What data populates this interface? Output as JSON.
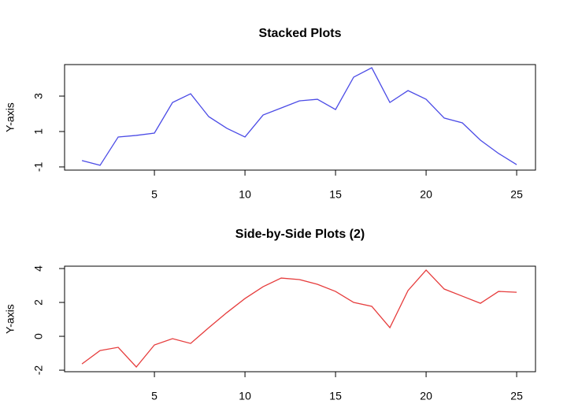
{
  "chart_data": [
    {
      "type": "line",
      "title": "Stacked Plots",
      "ylabel": "Y-axis",
      "x": [
        1,
        2,
        3,
        4,
        5,
        6,
        7,
        8,
        9,
        10,
        11,
        12,
        13,
        14,
        15,
        16,
        17,
        18,
        19,
        20,
        21,
        22,
        23,
        24,
        25
      ],
      "series": [
        {
          "color": "#4b4be6",
          "values": [
            -0.64,
            -0.91,
            0.69,
            0.78,
            0.91,
            2.64,
            3.13,
            1.84,
            1.18,
            0.69,
            1.93,
            2.33,
            2.73,
            2.82,
            2.24,
            4.07,
            4.6,
            2.64,
            3.31,
            2.82,
            1.76,
            1.49,
            0.51,
            -0.24,
            -0.87
          ]
        }
      ],
      "xlim": [
        0.04,
        26.04
      ],
      "xticks": [
        5,
        10,
        15,
        20,
        25
      ],
      "ylim": [
        -1.18,
        4.78
      ],
      "yticks": [
        -1,
        1,
        3
      ]
    },
    {
      "type": "line",
      "title": "Side-by-Side Plots (2)",
      "ylabel": "Y-axis",
      "x": [
        1,
        2,
        3,
        4,
        5,
        6,
        7,
        8,
        9,
        10,
        11,
        12,
        13,
        14,
        15,
        16,
        17,
        18,
        19,
        20,
        21,
        22,
        23,
        24,
        25
      ],
      "series": [
        {
          "color": "#e63c3c",
          "values": [
            -1.63,
            -0.84,
            -0.65,
            -1.81,
            -0.51,
            -0.14,
            -0.42,
            0.51,
            1.4,
            2.23,
            2.93,
            3.44,
            3.35,
            3.07,
            2.65,
            2.0,
            1.77,
            0.51,
            2.7,
            3.91,
            2.79,
            2.37,
            1.95,
            2.65,
            2.6
          ]
        }
      ],
      "xlim": [
        0.04,
        26.04
      ],
      "xticks": [
        5,
        10,
        15,
        20,
        25
      ],
      "ylim": [
        -2.09,
        4.14
      ],
      "yticks": [
        -2,
        0,
        2,
        4
      ]
    }
  ]
}
